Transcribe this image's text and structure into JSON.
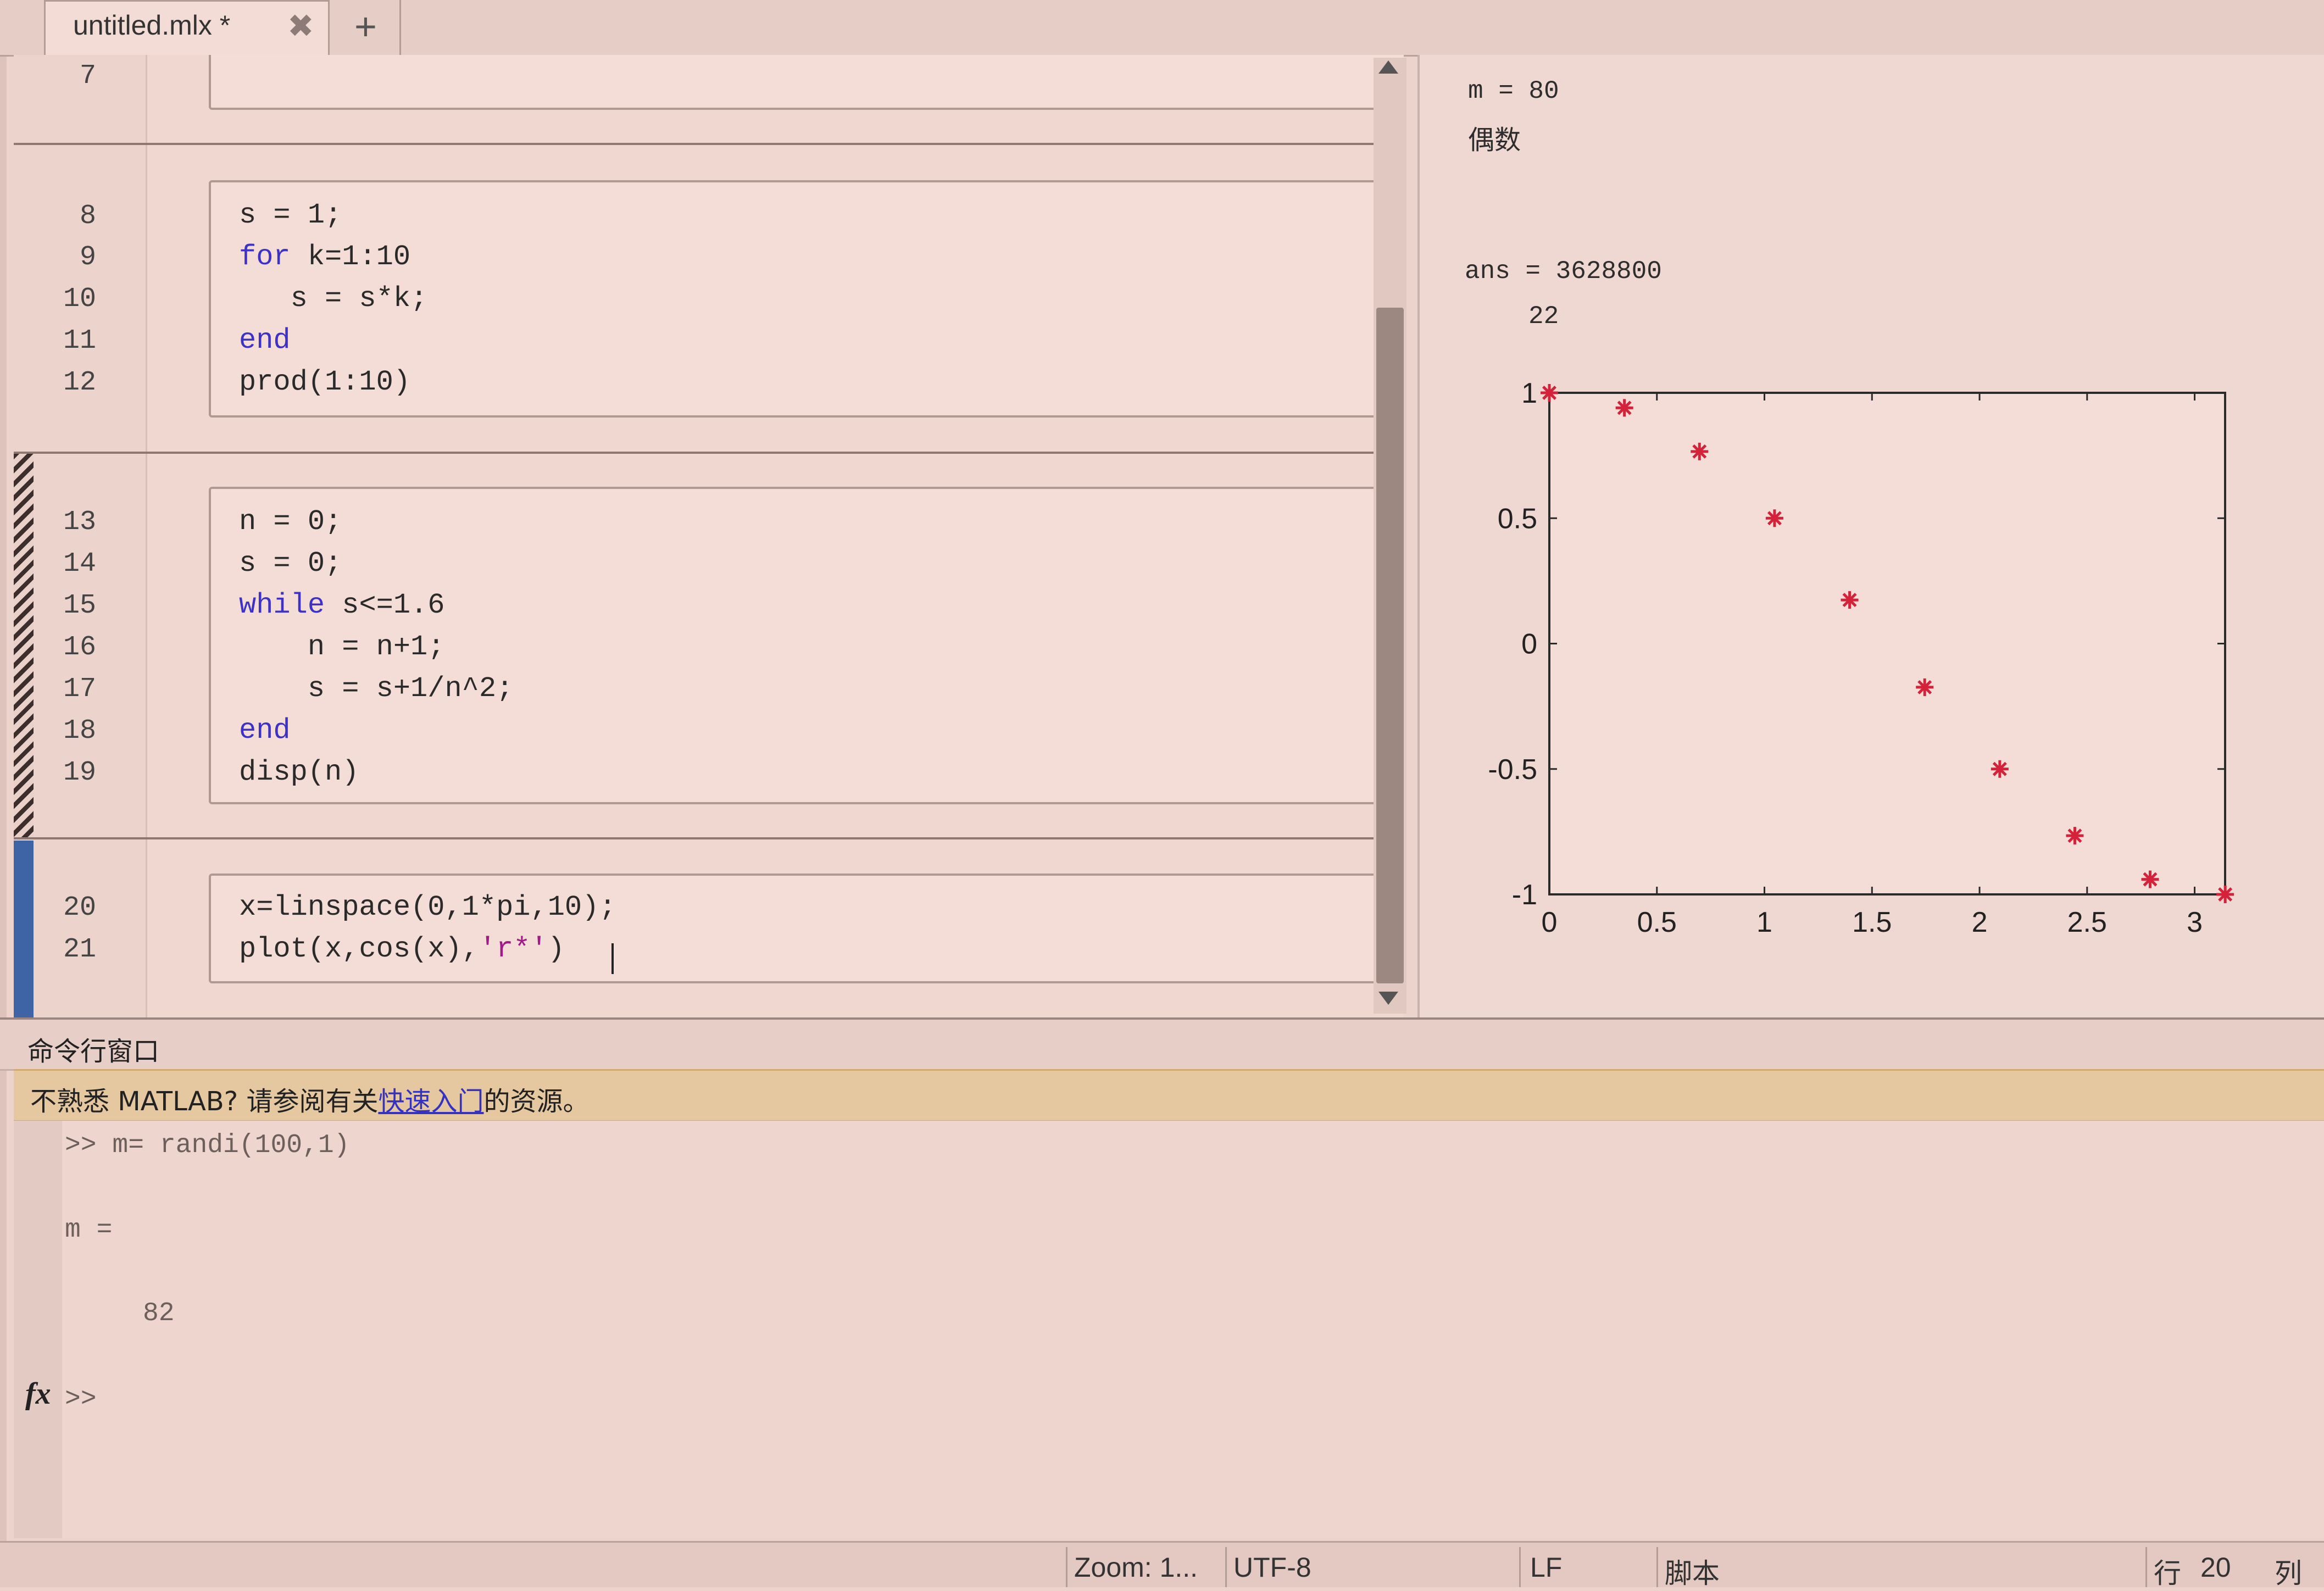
{
  "tab": {
    "label": "untitled.mlx *",
    "close_glyph": "✖",
    "add_glyph": "+"
  },
  "editor": {
    "lines": [
      {
        "no": "7"
      },
      {
        "no": "8",
        "code": "s = 1;"
      },
      {
        "no": "9",
        "kw": "for",
        "code": " k=1:10"
      },
      {
        "no": "10",
        "code": "   s = s*k;"
      },
      {
        "no": "11",
        "kw": "end"
      },
      {
        "no": "12",
        "code": "prod(1:10)"
      },
      {
        "no": "13",
        "code": "n = 0;"
      },
      {
        "no": "14",
        "code": "s = 0;"
      },
      {
        "no": "15",
        "kw": "while",
        "code": " s<=1.6"
      },
      {
        "no": "16",
        "code": "    n = n+1;"
      },
      {
        "no": "17",
        "code": "    s = s+1/n^2;"
      },
      {
        "no": "18",
        "kw": "end"
      },
      {
        "no": "19",
        "code": "disp(n)"
      },
      {
        "no": "20",
        "code": "x=linspace(0,1*pi,10);"
      },
      {
        "no": "21",
        "code_pre": "plot(x,cos(x),",
        "str": "'r*'",
        "code_post": ")"
      }
    ]
  },
  "output": {
    "m_line": "m = 80",
    "parity": "偶数",
    "ans_line": "ans = 3628800",
    "n_value": "22"
  },
  "chart_data": {
    "type": "scatter",
    "marker": "*",
    "color": "#d4223a",
    "x": [
      0,
      0.349,
      0.698,
      1.047,
      1.396,
      1.745,
      2.094,
      2.443,
      2.793,
      3.142
    ],
    "y": [
      1,
      0.94,
      0.766,
      0.5,
      0.174,
      -0.174,
      -0.5,
      -0.766,
      -0.94,
      -1
    ],
    "xlim": [
      0,
      3.1416
    ],
    "ylim": [
      -1,
      1
    ],
    "xticks": [
      "0",
      "0.5",
      "1",
      "1.5",
      "2",
      "2.5",
      "3"
    ],
    "yticks": [
      "1",
      "0.5",
      "0",
      "-0.5",
      "-1"
    ],
    "grid": false
  },
  "command_window": {
    "title": "命令行窗口",
    "banner_pre": "不熟悉 MATLAB? 请参阅有关",
    "banner_link": "快速入门",
    "banner_post": "的资源。",
    "history": [
      ">> m= randi(100,1)",
      "m =",
      "82"
    ],
    "fx": "fx",
    "prompt": ">>"
  },
  "status": {
    "zoom": "Zoom: 1...",
    "encoding": "UTF-8",
    "line_ending": "LF",
    "file_type": "脚本",
    "row_label": "行",
    "row": "20",
    "col_label": "列"
  }
}
